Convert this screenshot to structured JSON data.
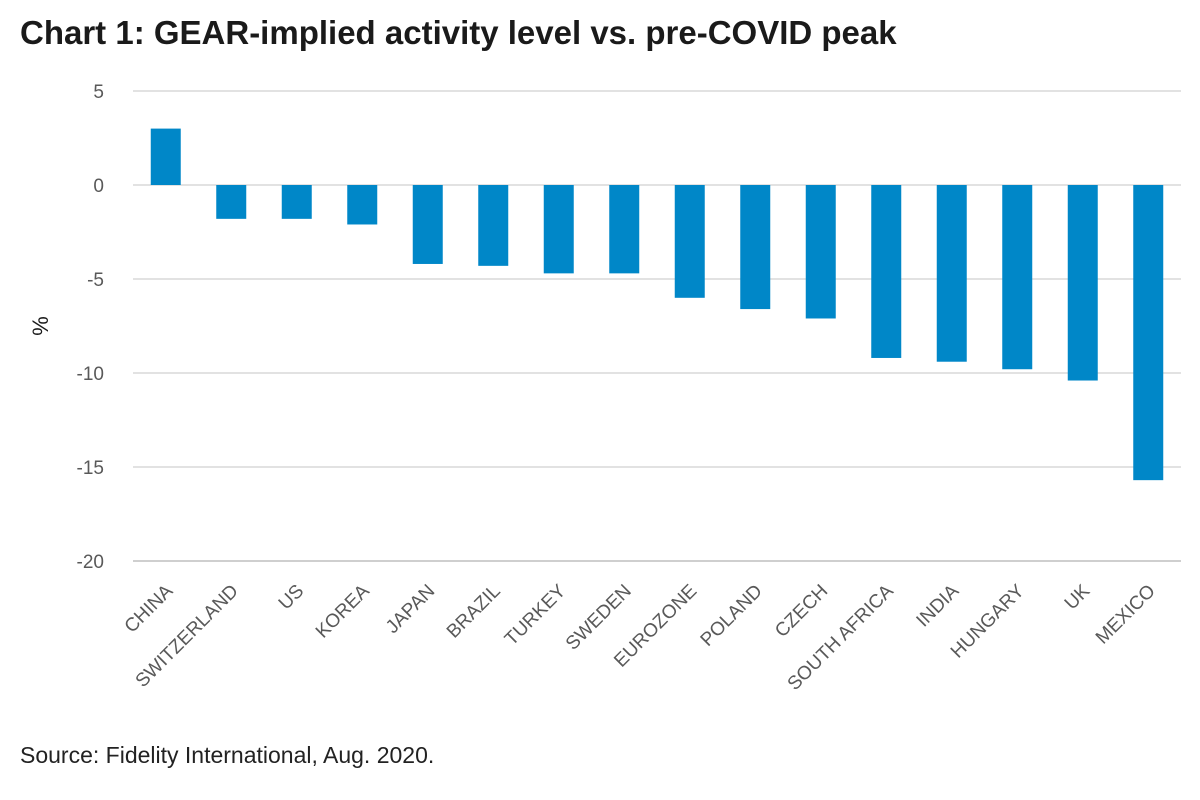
{
  "title": "Chart 1: GEAR-implied activity level vs. pre-COVID peak",
  "source": "Source: Fidelity International, Aug. 2020.",
  "chart_data": {
    "type": "bar",
    "title": "Chart 1: GEAR-implied activity level vs. pre-COVID peak",
    "xlabel": "",
    "ylabel": "%",
    "ylim": [
      -20,
      5
    ],
    "yticks": [
      5,
      0,
      -5,
      -10,
      -15,
      -20
    ],
    "grid": true,
    "legend": "none",
    "bar_color": "#0087c8",
    "categories": [
      "CHINA",
      "SWITZERLAND",
      "US",
      "KOREA",
      "JAPAN",
      "BRAZIL",
      "TURKEY",
      "SWEDEN",
      "EUROZONE",
      "POLAND",
      "CZECH",
      "SOUTH AFRICA",
      "INDIA",
      "HUNGARY",
      "UK",
      "MEXICO"
    ],
    "values": [
      3.0,
      -1.8,
      -1.8,
      -2.1,
      -4.2,
      -4.3,
      -4.7,
      -4.7,
      -6.0,
      -6.6,
      -7.1,
      -9.2,
      -9.4,
      -9.8,
      -10.4,
      -15.7
    ]
  }
}
